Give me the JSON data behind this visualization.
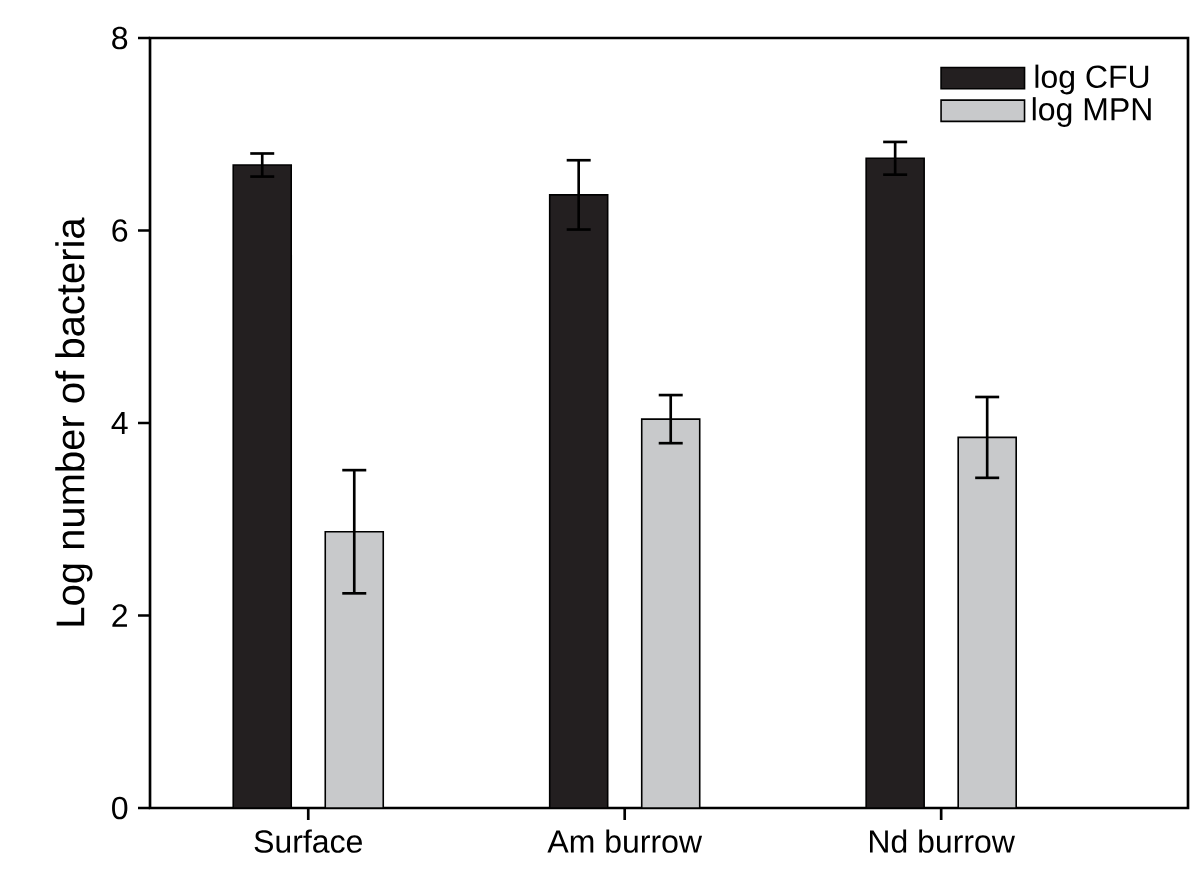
{
  "chart_data": {
    "type": "bar",
    "ylabel": "Log number of bacteria",
    "categories": [
      "Surface",
      "Am burrow",
      "Nd burrow"
    ],
    "series": [
      {
        "name": "log CFU",
        "color": "#231f20",
        "values": [
          6.68,
          6.37,
          6.75
        ],
        "errors": [
          0.12,
          0.36,
          0.17
        ]
      },
      {
        "name": "log MPN",
        "color": "#c8c9cb",
        "values": [
          2.87,
          4.04,
          3.85
        ],
        "errors": [
          0.64,
          0.25,
          0.42
        ]
      }
    ],
    "ylim": [
      0,
      8
    ],
    "yticks": [
      0,
      2,
      4,
      6,
      8
    ],
    "legend": "top right"
  }
}
